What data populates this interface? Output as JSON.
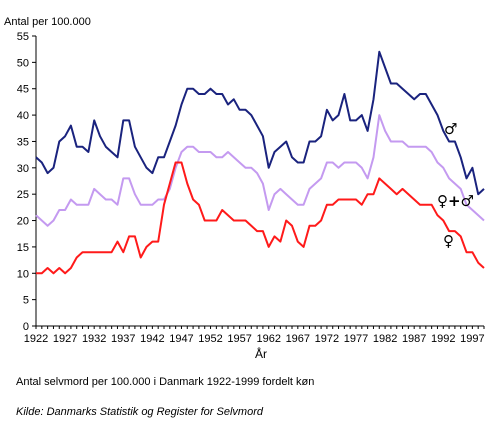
{
  "caption": "Antal selvmord per 100.000 i Danmark 1922-1999 fordelt køn",
  "source": "Kilde: Danmarks Statistik og Register for Selvmord",
  "chart_data": {
    "type": "line",
    "ylabel": "Antal per 100.000",
    "xlabel": "År",
    "xlim": [
      1922,
      1999
    ],
    "ylim": [
      0,
      55
    ],
    "yticks": [
      0,
      5,
      10,
      15,
      20,
      25,
      30,
      35,
      40,
      45,
      50,
      55
    ],
    "xticks": [
      1922,
      1927,
      1932,
      1937,
      1942,
      1947,
      1952,
      1957,
      1962,
      1967,
      1972,
      1977,
      1982,
      1987,
      1992,
      1997
    ],
    "grid": false,
    "x": [
      1922,
      1923,
      1924,
      1925,
      1926,
      1927,
      1928,
      1929,
      1930,
      1931,
      1932,
      1933,
      1934,
      1935,
      1936,
      1937,
      1938,
      1939,
      1940,
      1941,
      1942,
      1943,
      1944,
      1945,
      1946,
      1947,
      1948,
      1949,
      1950,
      1951,
      1952,
      1953,
      1954,
      1955,
      1956,
      1957,
      1958,
      1959,
      1960,
      1961,
      1962,
      1963,
      1964,
      1965,
      1966,
      1967,
      1968,
      1969,
      1970,
      1971,
      1972,
      1973,
      1974,
      1975,
      1976,
      1977,
      1978,
      1979,
      1980,
      1981,
      1982,
      1983,
      1984,
      1985,
      1986,
      1987,
      1988,
      1989,
      1990,
      1991,
      1992,
      1993,
      1994,
      1995,
      1996,
      1997,
      1998,
      1999
    ],
    "series": [
      {
        "name": "♂",
        "color": "#1a237e",
        "values": [
          32,
          31,
          29,
          30,
          35,
          36,
          38,
          34,
          34,
          33,
          39,
          36,
          34,
          33,
          32,
          39,
          39,
          34,
          32,
          30,
          29,
          32,
          32,
          35,
          38,
          42,
          45,
          45,
          44,
          44,
          45,
          44,
          44,
          42,
          43,
          41,
          41,
          40,
          38,
          36,
          30,
          33,
          34,
          35,
          32,
          31,
          31,
          35,
          35,
          36,
          41,
          39,
          40,
          44,
          39,
          39,
          40,
          37,
          43,
          52,
          49,
          46,
          46,
          45,
          44,
          43,
          44,
          44,
          42,
          40,
          37,
          35,
          35,
          32,
          28,
          30,
          25,
          26
        ]
      },
      {
        "name": "♀+♂",
        "color": "#c49af0",
        "values": [
          21,
          20,
          19,
          20,
          22,
          22,
          24,
          23,
          23,
          23,
          26,
          25,
          24,
          24,
          23,
          28,
          28,
          25,
          23,
          23,
          23,
          24,
          24,
          26,
          30,
          33,
          34,
          34,
          33,
          33,
          33,
          32,
          32,
          33,
          32,
          31,
          30,
          30,
          29,
          27,
          22,
          25,
          26,
          25,
          24,
          23,
          23,
          26,
          27,
          28,
          31,
          31,
          30,
          31,
          31,
          31,
          30,
          28,
          32,
          40,
          37,
          35,
          35,
          35,
          34,
          34,
          34,
          34,
          33,
          31,
          30,
          28,
          27,
          26,
          23,
          22,
          21,
          20
        ]
      },
      {
        "name": "♀",
        "color": "#ff1a1a",
        "values": [
          10,
          10,
          11,
          10,
          11,
          10,
          11,
          13,
          14,
          14,
          14,
          14,
          14,
          14,
          16,
          14,
          17,
          17,
          13,
          15,
          16,
          16,
          23,
          27,
          31,
          31,
          27,
          24,
          23,
          20,
          20,
          20,
          22,
          21,
          20,
          20,
          20,
          19,
          18,
          18,
          15,
          17,
          16,
          20,
          19,
          16,
          15,
          19,
          19,
          20,
          23,
          23,
          24,
          24,
          24,
          24,
          23,
          25,
          25,
          28,
          27,
          26,
          25,
          26,
          25,
          24,
          23,
          23,
          23,
          21,
          20,
          18,
          18,
          17,
          14,
          14,
          12,
          11
        ]
      }
    ]
  }
}
